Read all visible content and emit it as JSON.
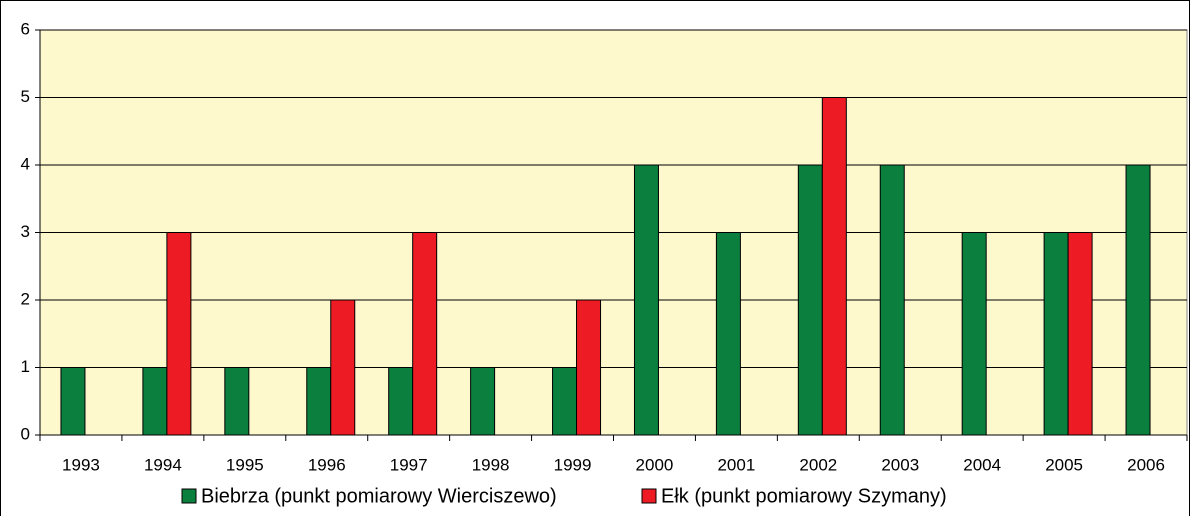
{
  "chart_data": {
    "type": "bar",
    "categories": [
      "1993",
      "1994",
      "1995",
      "1996",
      "1997",
      "1998",
      "1999",
      "2000",
      "2001",
      "2002",
      "2003",
      "2004",
      "2005",
      "2006"
    ],
    "series": [
      {
        "name": "Biebrza (punkt pomiarowy Wierciszewo)",
        "color": "#0b7f3e",
        "values": [
          1,
          1,
          1,
          1,
          1,
          1,
          1,
          4,
          3,
          4,
          4,
          3,
          3,
          4
        ]
      },
      {
        "name": "Ełk (punkt pomiarowy Szymany)",
        "color": "#ed1c24",
        "values": [
          0,
          3,
          0,
          2,
          3,
          0,
          2,
          0,
          0,
          5,
          0,
          0,
          3,
          0
        ]
      }
    ],
    "ylim": [
      0,
      6
    ],
    "yticks": [
      0,
      1,
      2,
      3,
      4,
      5,
      6
    ],
    "grid": true,
    "legend": "bottom"
  }
}
